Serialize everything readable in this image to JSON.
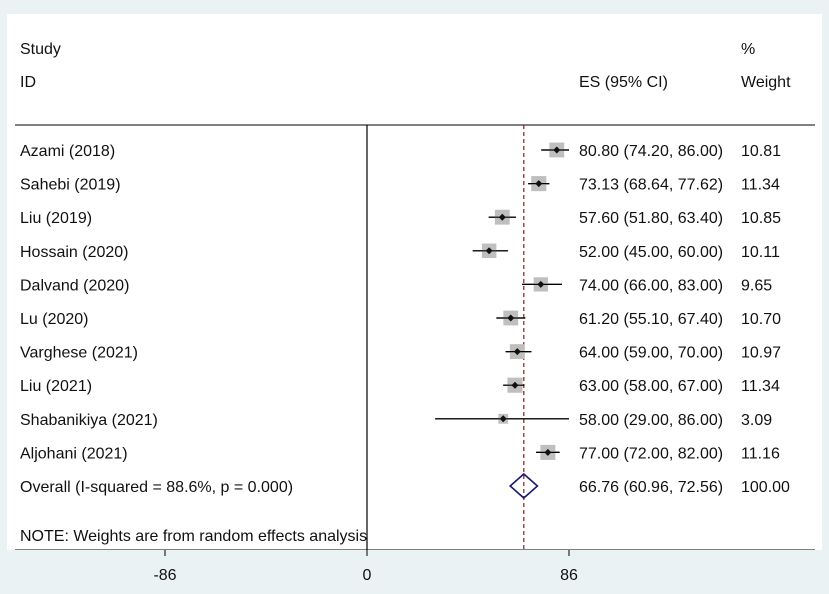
{
  "colors": {
    "background": "#eaf2f3",
    "panel": "#ffffff",
    "box": "#bfbfbf",
    "point": "#111111",
    "overall_diamond": "#1a1a6e",
    "reference_line": "#8b1a1a"
  },
  "chart_data": {
    "type": "forest",
    "header": {
      "study_line1": "Study",
      "study_line2": "ID",
      "es_label": "ES (95% CI)",
      "weight_line1": "%",
      "weight_line2": "Weight"
    },
    "studies": [
      {
        "name": "Azami (2018)",
        "es": 80.8,
        "lo": 74.2,
        "hi": 86.0,
        "es_text": "80.80 (74.20, 86.00)",
        "weight": 10.81,
        "weight_text": "10.81"
      },
      {
        "name": "Sahebi (2019)",
        "es": 73.13,
        "lo": 68.64,
        "hi": 77.62,
        "es_text": "73.13 (68.64, 77.62)",
        "weight": 11.34,
        "weight_text": "11.34"
      },
      {
        "name": "Liu (2019)",
        "es": 57.6,
        "lo": 51.8,
        "hi": 63.4,
        "es_text": "57.60 (51.80, 63.40)",
        "weight": 10.85,
        "weight_text": "10.85"
      },
      {
        "name": "Hossain (2020)",
        "es": 52.0,
        "lo": 45.0,
        "hi": 60.0,
        "es_text": "52.00 (45.00, 60.00)",
        "weight": 10.11,
        "weight_text": "10.11"
      },
      {
        "name": "Dalvand (2020)",
        "es": 74.0,
        "lo": 66.0,
        "hi": 83.0,
        "es_text": "74.00 (66.00, 83.00)",
        "weight": 9.65,
        "weight_text": "9.65"
      },
      {
        "name": "Lu (2020)",
        "es": 61.2,
        "lo": 55.1,
        "hi": 67.4,
        "es_text": "61.20 (55.10, 67.40)",
        "weight": 10.7,
        "weight_text": "10.70"
      },
      {
        "name": "Varghese (2021)",
        "es": 64.0,
        "lo": 59.0,
        "hi": 70.0,
        "es_text": "64.00 (59.00, 70.00)",
        "weight": 10.97,
        "weight_text": "10.97"
      },
      {
        "name": "Liu (2021)",
        "es": 63.0,
        "lo": 58.0,
        "hi": 67.0,
        "es_text": "63.00 (58.00, 67.00)",
        "weight": 11.34,
        "weight_text": "11.34"
      },
      {
        "name": "Shabanikiya (2021)",
        "es": 58.0,
        "lo": 29.0,
        "hi": 86.0,
        "es_text": "58.00 (29.00, 86.00)",
        "weight": 3.09,
        "weight_text": "3.09"
      },
      {
        "name": "Aljohani (2021)",
        "es": 77.0,
        "lo": 72.0,
        "hi": 82.0,
        "es_text": "77.00 (72.00, 82.00)",
        "weight": 11.16,
        "weight_text": "11.16"
      }
    ],
    "overall": {
      "label": "Overall  (I-squared = 88.6%, p = 0.000)",
      "es": 66.76,
      "lo": 60.96,
      "hi": 72.56,
      "es_text": "66.76 (60.96, 72.56)",
      "weight_text": "100.00"
    },
    "note": "NOTE: Weights are from random effects analysis",
    "x_axis": {
      "ticks": [
        -86,
        0,
        86
      ],
      "tick_labels": [
        "-86",
        "0",
        "86"
      ],
      "range": [
        -148,
        148
      ]
    },
    "null_line": 0,
    "pooled_line": 66.76
  }
}
